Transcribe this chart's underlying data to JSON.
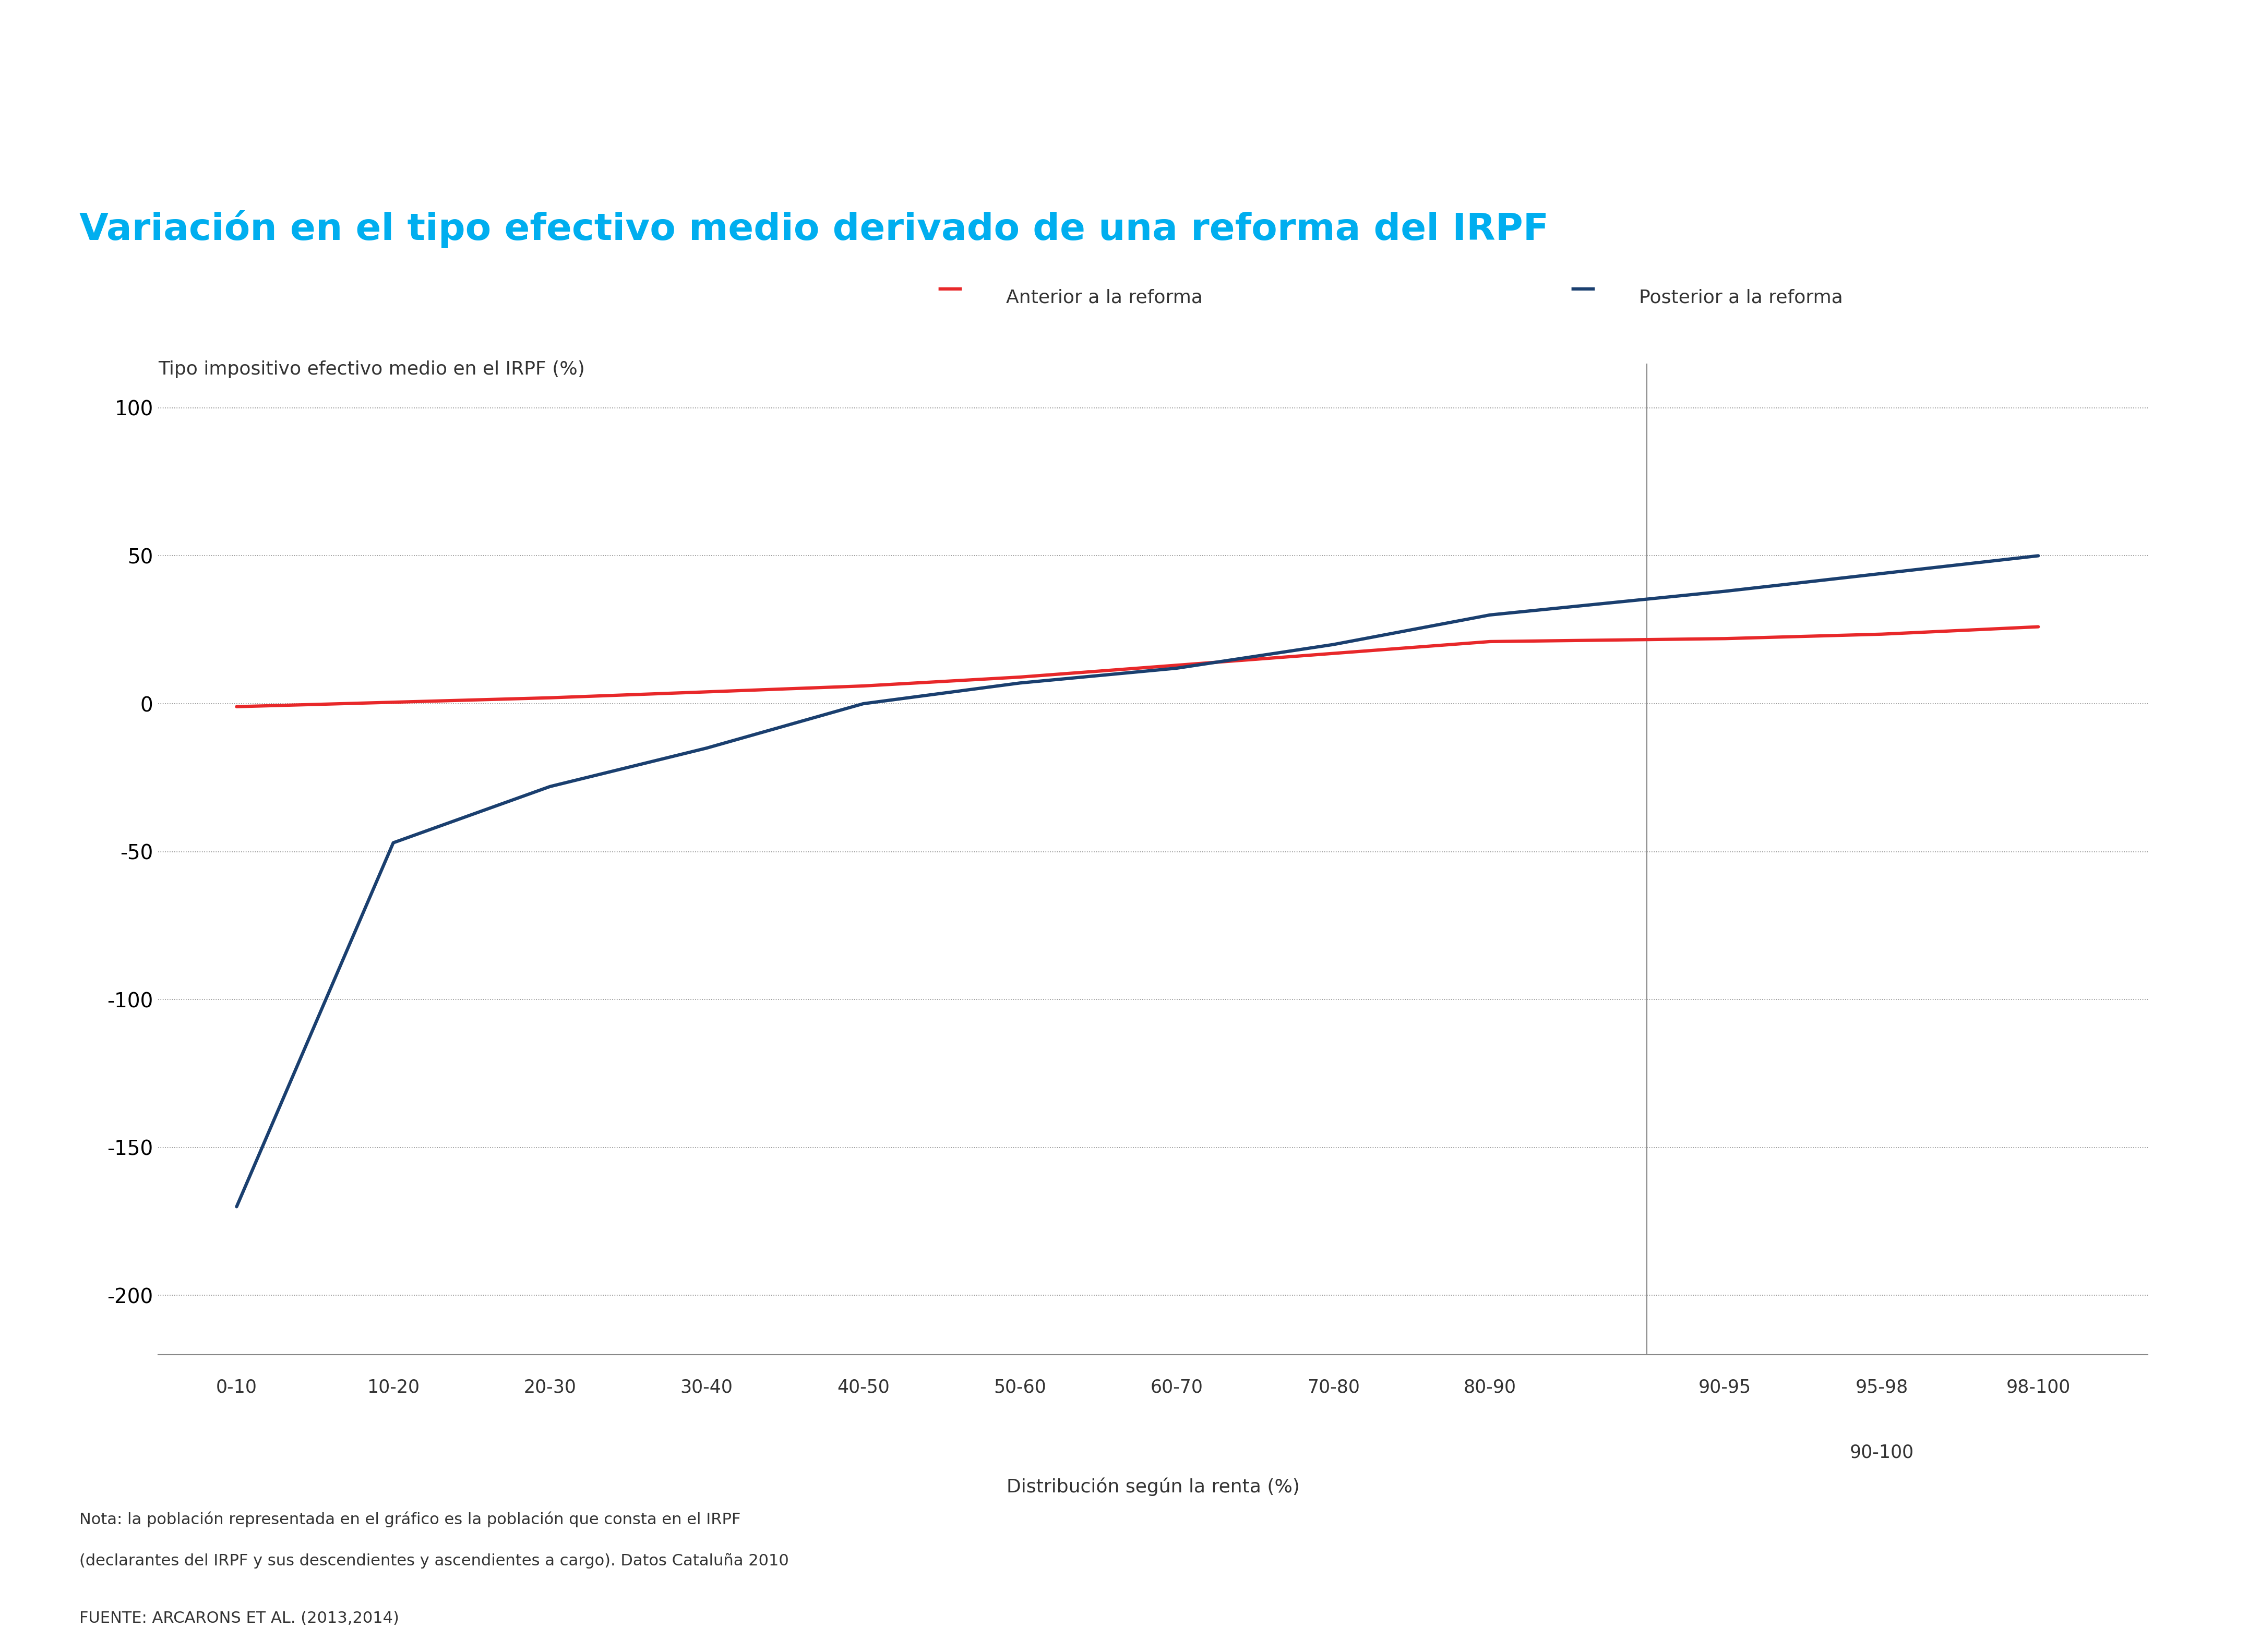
{
  "title": "Variación en el tipo efectivo medio derivado de una reforma del IRPF",
  "title_color": "#00AEEF",
  "ylabel": "Tipo impositivo efectivo medio en el IRPF (%)",
  "xlabel": "Distribución según la renta (%)",
  "ylim": [
    -220,
    115
  ],
  "yticks": [
    -200,
    -150,
    -100,
    -50,
    0,
    50,
    100
  ],
  "x_positions": [
    0,
    1,
    2,
    3,
    4,
    5,
    6,
    7,
    8,
    9.5,
    10.5,
    11.5
  ],
  "x_labels_main": [
    "0-10",
    "10-20",
    "20-30",
    "30-40",
    "40-50",
    "50-60",
    "60-70",
    "70-80",
    "80-90"
  ],
  "x_labels_sub": [
    "90-95",
    "95-98",
    "98-100"
  ],
  "x_label_group": "90-100",
  "red_values": [
    -1,
    0.5,
    2,
    4,
    6,
    9,
    13,
    17,
    21,
    22,
    23.5,
    26
  ],
  "blue_values": [
    -170,
    -47,
    -28,
    -15,
    0,
    7,
    12,
    20,
    30,
    38,
    44,
    50
  ],
  "red_color": "#E8282A",
  "blue_color": "#1A3F6F",
  "legend_anterior": "Anterior a la reforma",
  "legend_posterior": "Posterior a la reforma",
  "note_line1": "Nota: la población representada en el gráfico es la población que consta en el IRPF",
  "note_line2": "(declarantes del IRPF y sus descendientes y ascendientes a cargo). Datos Cataluña 2010",
  "source": "FUENTE: ARCARONS ET AL. (2013,2014)",
  "background_color": "#FFFFFF",
  "line_width": 4.5
}
